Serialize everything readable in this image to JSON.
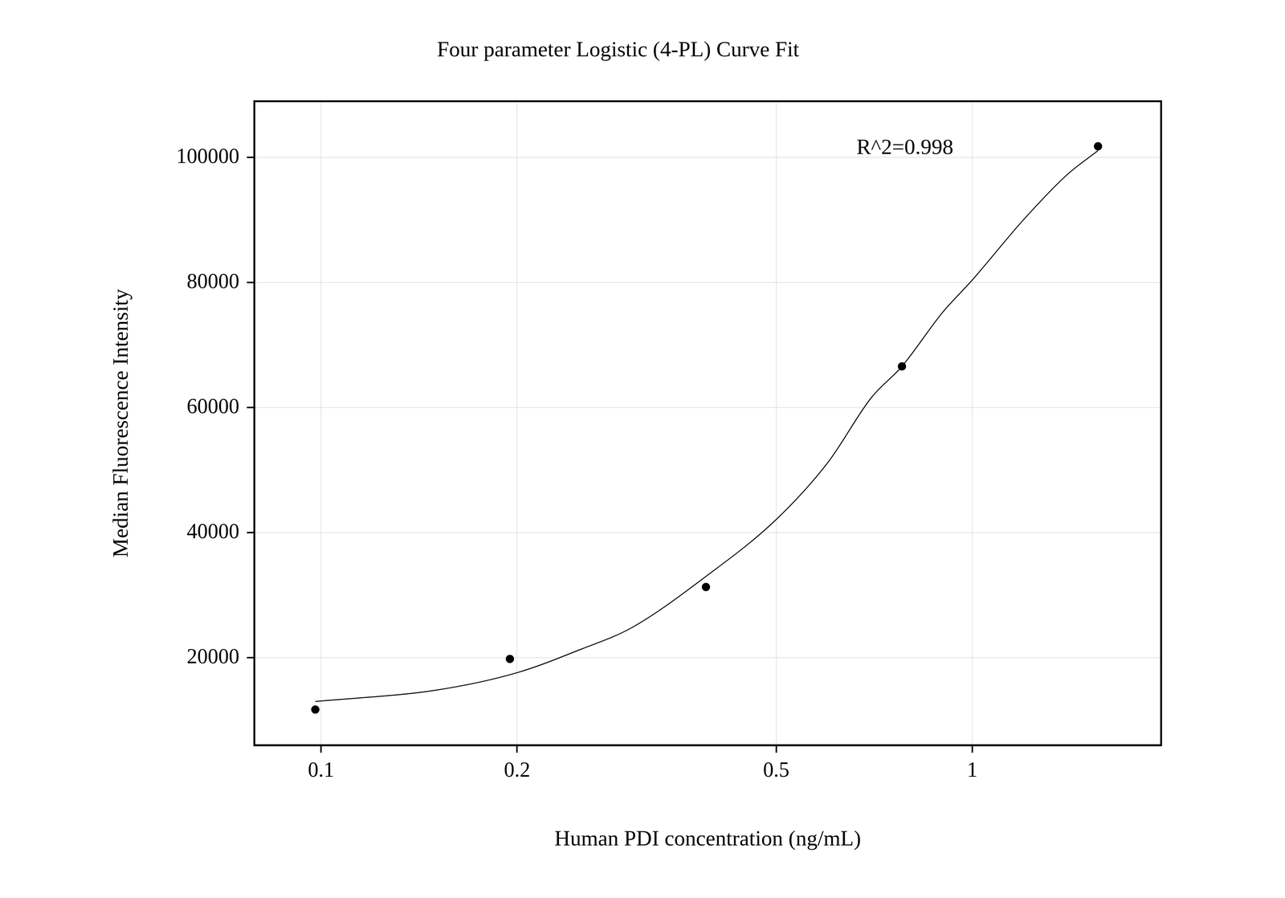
{
  "chart_data": {
    "type": "scatter",
    "title": "Four parameter Logistic (4-PL) Curve Fit",
    "x_label": "Human PDI concentration (ng/mL)",
    "y_label": "Median Fluorescence Intensity",
    "annotations": [
      "R^2=0.998"
    ],
    "series": [
      {
        "type": "scatter",
        "color": "#000000",
        "marker": "circle",
        "x": [
          0.098,
          0.195,
          0.39,
          0.78,
          1.56
        ],
        "values": [
          11700,
          19800,
          31300,
          66600,
          101800
        ]
      },
      {
        "type": "line",
        "color": "#000000",
        "line_style": "solid",
        "x": [
          0.098,
          0.15,
          0.2,
          0.25,
          0.3,
          0.39,
          0.5,
          0.6,
          0.7,
          0.78,
          0.9,
          1.0,
          1.2,
          1.4,
          1.56
        ],
        "values": [
          13000,
          14800,
          17600,
          21300,
          24800,
          33000,
          42100,
          51200,
          61600,
          66600,
          75200,
          80400,
          90100,
          97300,
          101100
        ]
      }
    ],
    "xlim": [
      0.079,
      1.95
    ],
    "ylim": [
      6000,
      109000
    ],
    "xticks": [
      0.1,
      0.2,
      0.5,
      1
    ],
    "yticks": [
      20000,
      40000,
      60000,
      80000,
      100000
    ],
    "log": "x",
    "grid": true
  }
}
